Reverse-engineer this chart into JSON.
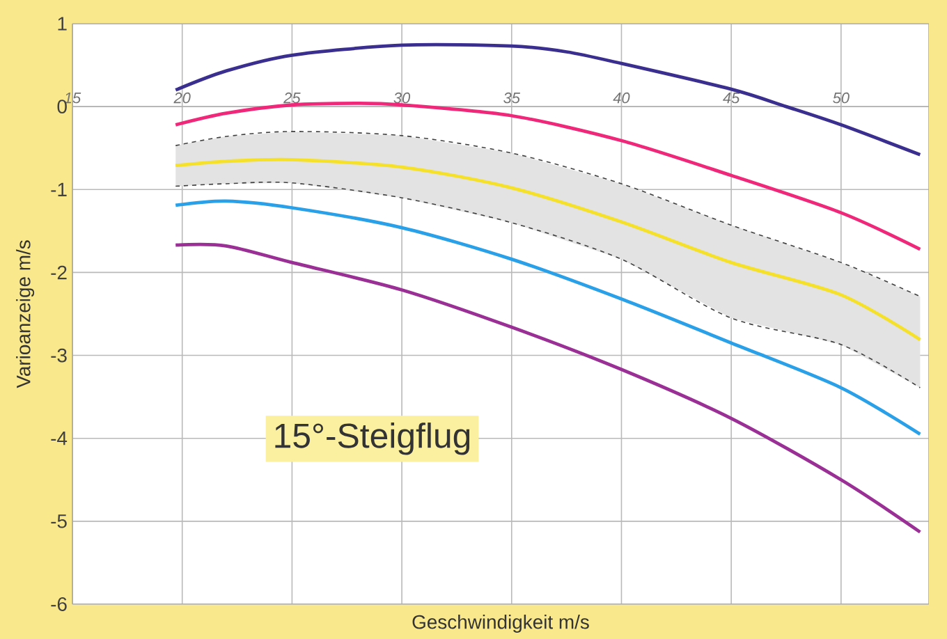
{
  "chart_data": {
    "type": "line",
    "xlabel": "Geschwindigkeit m/s",
    "ylabel": "Varioanzeige m/s",
    "annotations": [
      "15°-Steigflug"
    ],
    "xlim": [
      15,
      54
    ],
    "ylim": [
      -6,
      1
    ],
    "xticks": [
      15,
      20,
      25,
      30,
      35,
      40,
      45,
      50
    ],
    "yticks": [
      -6,
      -5,
      -4,
      -3,
      -2,
      -1,
      0,
      1
    ],
    "grid": true,
    "marker": "none",
    "line_style": "solid",
    "series": [
      {
        "color": "#3a2f8f",
        "x": [
          19.7,
          22,
          25,
          30,
          35,
          37.5,
          40,
          45,
          47.5,
          50,
          53.6
        ],
        "values": [
          0.2,
          0.43,
          0.62,
          0.74,
          0.73,
          0.66,
          0.52,
          0.21,
          0,
          -0.22,
          -0.58
        ]
      },
      {
        "color": "#f0287a",
        "x": [
          19.7,
          22,
          25,
          28,
          30,
          35,
          40,
          45,
          50,
          53.6
        ],
        "values": [
          -0.22,
          -0.08,
          0.02,
          0.04,
          0.02,
          -0.11,
          -0.41,
          -0.83,
          -1.28,
          -1.72
        ]
      },
      {
        "color": "#f5e02a",
        "x": [
          19.7,
          22,
          25,
          30,
          35,
          40,
          45,
          50,
          53.6
        ],
        "values": [
          -0.71,
          -0.66,
          -0.64,
          -0.73,
          -0.98,
          -1.39,
          -1.88,
          -2.27,
          -2.81
        ],
        "lower": [
          -0.96,
          -0.93,
          -0.92,
          -1.1,
          -1.4,
          -1.84,
          -2.55,
          -2.87,
          -3.39
        ],
        "upper": [
          -0.47,
          -0.36,
          -0.3,
          -0.35,
          -0.56,
          -0.93,
          -1.43,
          -1.88,
          -2.29
        ]
      },
      {
        "color": "#404040",
        "line_style": "dashed",
        "x": [
          19.7,
          22,
          25,
          30,
          35,
          40,
          45,
          50,
          53.6
        ],
        "values": [
          -0.47,
          -0.36,
          -0.3,
          -0.35,
          -0.56,
          -0.93,
          -1.43,
          -1.88,
          -2.29
        ]
      },
      {
        "color": "#404040",
        "line_style": "dashed",
        "x": [
          19.7,
          22,
          25,
          30,
          35,
          40,
          45,
          50,
          53.6
        ],
        "values": [
          -0.96,
          -0.93,
          -0.92,
          -1.1,
          -1.4,
          -1.84,
          -2.55,
          -2.87,
          -3.39
        ]
      },
      {
        "color": "#2aa0e8",
        "x": [
          19.7,
          22,
          25,
          30,
          35,
          40,
          45,
          50,
          53.6
        ],
        "values": [
          -1.19,
          -1.14,
          -1.22,
          -1.46,
          -1.84,
          -2.32,
          -2.85,
          -3.39,
          -3.95
        ]
      },
      {
        "color": "#9a2f95",
        "x": [
          19.7,
          22,
          25,
          30,
          35,
          40,
          45,
          50,
          53.6
        ],
        "values": [
          -1.67,
          -1.68,
          -1.88,
          -2.21,
          -2.66,
          -3.17,
          -3.76,
          -4.5,
          -5.13
        ]
      }
    ]
  }
}
